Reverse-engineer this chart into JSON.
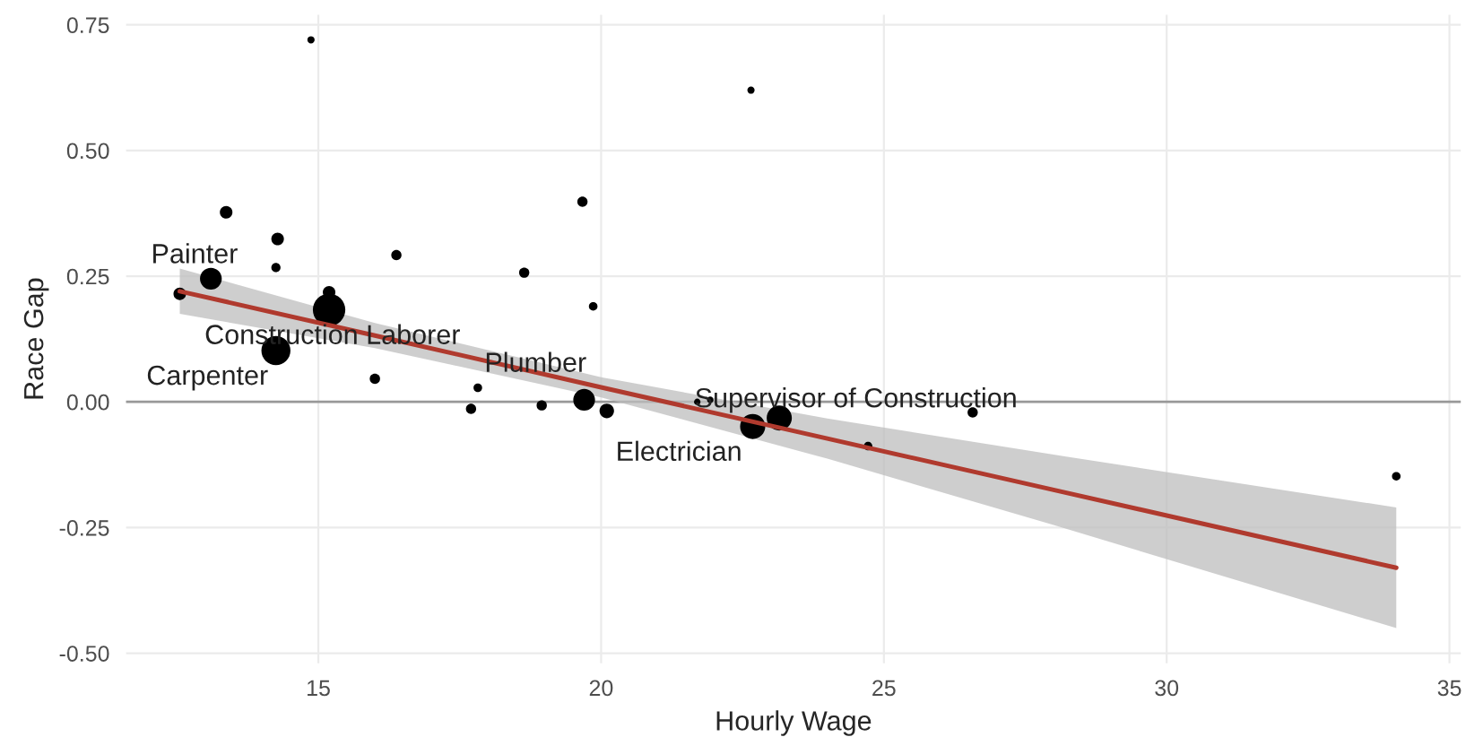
{
  "chart_data": {
    "type": "bubble",
    "xlabel": "Hourly Wage",
    "ylabel": "Race Gap",
    "xlim": [
      11.6,
      35.2
    ],
    "ylim": [
      -0.52,
      0.77
    ],
    "xticks": [
      15,
      20,
      25,
      30,
      35
    ],
    "yticks": [
      {
        "value": -0.5,
        "label": "-0.50"
      },
      -0.25,
      {
        "value": 0,
        "label": "0.00"
      },
      0.25,
      {
        "value": 0.5,
        "label": "0.50"
      },
      0.75
    ],
    "grid": true,
    "legend": false,
    "series": [
      {
        "color": "#000000",
        "x": [
          12.55,
          13.1,
          13.37,
          14.28,
          14.25,
          14.87,
          15.19,
          15.19,
          14.25,
          16.38,
          16.0,
          18.64,
          19.67,
          19.86,
          17.82,
          17.7,
          18.95,
          19.7,
          20.1,
          21.7,
          21.93,
          22.68,
          23.15,
          24.72,
          26.57,
          22.65,
          34.06
        ],
        "values": [
          0.215,
          0.245,
          0.377,
          0.324,
          0.267,
          0.72,
          0.218,
          0.183,
          0.102,
          0.292,
          0.046,
          0.257,
          0.398,
          0.19,
          0.028,
          -0.014,
          -0.007,
          0.004,
          -0.018,
          0.0,
          0.004,
          -0.049,
          -0.032,
          -0.088,
          -0.021,
          0.62,
          -0.148
        ],
        "sizes": [
          0.15,
          0.45,
          0.15,
          0.15,
          0.08,
          0.05,
          0.15,
          1,
          0.8,
          0.1,
          0.1,
          0.1,
          0.1,
          0.07,
          0.07,
          0.1,
          0.1,
          0.45,
          0.2,
          0.04,
          0.04,
          0.6,
          0.6,
          0.07,
          0.1,
          0.05,
          0.07
        ]
      },
      {
        "type": "line",
        "color": "#b03a2e",
        "x": [
          12.55,
          16,
          20,
          24,
          28,
          34.06
        ],
        "values": [
          0.22,
          0.132,
          0.029,
          -0.073,
          -0.175,
          -0.33
        ],
        "lower": [
          0.175,
          0.107,
          0.009,
          -0.113,
          -0.245,
          -0.45
        ],
        "upper": [
          0.265,
          0.157,
          0.049,
          -0.033,
          -0.105,
          -0.21
        ]
      }
    ],
    "ref_lines": [
      {
        "axis": "y",
        "value": 0,
        "color": "#999999"
      }
    ],
    "annotations": [
      {
        "text": "Painter",
        "x": 13.1,
        "y": 0.245
      },
      {
        "text": "Construction Laborer",
        "x": 15.19,
        "y": 0.183
      },
      {
        "text": "Carpenter",
        "x": 14.25,
        "y": 0.102
      },
      {
        "text": "Plumber",
        "x": 19.7,
        "y": 0.004
      },
      {
        "text": "Supervisor of Construction",
        "x": 23.15,
        "y": -0.032
      },
      {
        "text": "Electrician",
        "x": 22.68,
        "y": -0.049
      }
    ]
  }
}
